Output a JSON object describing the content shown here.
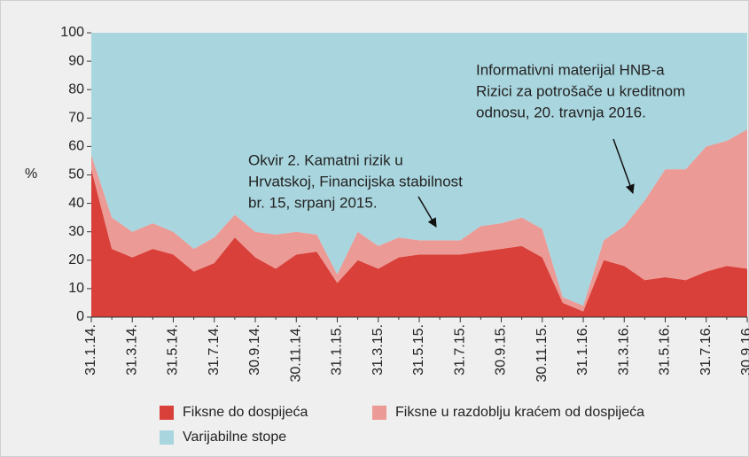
{
  "chart_data": {
    "type": "stacked_area",
    "y_axis_label": "%",
    "categories": [
      "31.1.14.",
      null,
      "31.3.14.",
      null,
      "31.5.14.",
      null,
      "31.7.14.",
      null,
      "30.9.14.",
      null,
      "30.11.14.",
      null,
      "31.1.15.",
      null,
      "31.3.15.",
      null,
      "31.5.15.",
      null,
      "31.7.15.",
      null,
      "30.9.15.",
      null,
      "30.11.15.",
      null,
      "31.1.16.",
      null,
      "31.3.16.",
      null,
      "31.5.16.",
      null,
      "31.7.16.",
      null,
      "30.9.16."
    ],
    "series": [
      {
        "name": "Fiksne do dospijeća",
        "color": "#d9403a",
        "values": [
          52,
          24,
          21,
          24,
          22,
          16,
          19,
          28,
          21,
          17,
          22,
          23,
          12,
          20,
          17,
          21,
          22,
          22,
          22,
          23,
          24,
          25,
          21,
          5,
          2,
          20,
          18,
          13,
          14,
          13,
          16,
          18,
          17
        ]
      },
      {
        "name": "Fiksne u razdoblju kraćem od dospijeća",
        "color": "#ec9a95",
        "values": [
          5,
          11,
          9,
          9,
          8,
          8,
          9,
          8,
          9,
          12,
          8,
          6,
          3,
          10,
          8,
          7,
          5,
          5,
          5,
          9,
          9,
          10,
          10,
          2,
          2,
          7,
          14,
          28,
          38,
          39,
          44,
          44,
          49
        ]
      },
      {
        "name": "Varijabilne stope",
        "color": "#a9d5de",
        "values": [
          43,
          65,
          70,
          67,
          70,
          76,
          72,
          64,
          70,
          71,
          70,
          71,
          85,
          70,
          75,
          72,
          73,
          73,
          73,
          68,
          67,
          65,
          69,
          93,
          96,
          73,
          68,
          59,
          48,
          48,
          40,
          38,
          34
        ]
      }
    ],
    "ylim": [
      0,
      100
    ],
    "yticks": [
      0,
      10,
      20,
      30,
      40,
      50,
      60,
      70,
      80,
      90,
      100
    ],
    "annotations": [
      {
        "lines": [
          "Okvir 2. Kamatni rizik u",
          "Hrvatskoj, Financijska stabilnost",
          "br. 15, srpanj 2015."
        ]
      },
      {
        "lines": [
          "Informativni materijal HNB-a",
          "Rizici za potrošače u kreditnom",
          "odnosu, 20. travnja 2016."
        ]
      }
    ]
  }
}
